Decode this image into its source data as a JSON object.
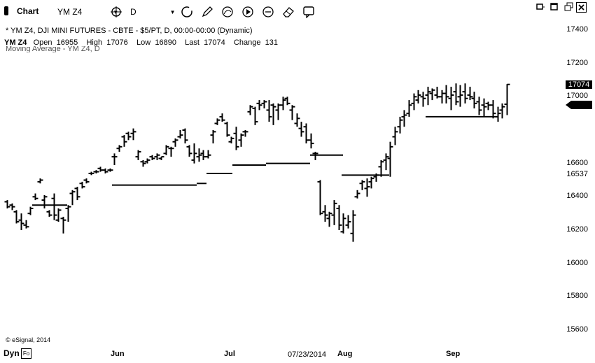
{
  "toolbar": {
    "title": "Chart",
    "symbol": "YM Z4",
    "interval": "D",
    "tool_icons": [
      "crosshair-icon",
      "loop-icon",
      "pencil-icon",
      "arc-tool-icon",
      "play-icon",
      "zoom-icon",
      "eraser-icon",
      "comment-icon"
    ]
  },
  "window": {
    "icons": [
      "restore-icon",
      "maximize-icon",
      "close-icon"
    ]
  },
  "info": {
    "line1": "* YM Z4, DJI MINI FUTURES - CBTE - $5/PT, D, 00:00-00:00 (Dynamic)",
    "symbol": "YM Z4",
    "open_label": "Open",
    "open": "16955",
    "high_label": "High",
    "high": "17076",
    "low_label": "Low",
    "low": "16890",
    "last_label": "Last",
    "last": "17074",
    "change_label": "Change",
    "change": "131",
    "study": "Moving Average - YM Z4, D"
  },
  "footer": {
    "copyright": "© eSignal, 2014",
    "dyn": "Dyn",
    "cursor_date": "07/23/2014"
  },
  "colors": {
    "bars": "#000000",
    "background": "#ffffff"
  },
  "chart_data": {
    "type": "bar",
    "style": "OHLC",
    "yticks": [
      "17400",
      "17200",
      "17000",
      "16600",
      "16400",
      "16200",
      "16000",
      "15800",
      "15600"
    ],
    "yvalues": [
      17400,
      17200,
      17000,
      16600,
      16400,
      16200,
      16000,
      15800,
      15600
    ],
    "ylim": [
      15500,
      17500
    ],
    "price_tag_last": "17074",
    "price_tag_extra": "16537",
    "xlabels": [
      "Jun",
      "Jul",
      "Aug",
      "Sep"
    ],
    "ohlc": [
      [
        16370,
        16380,
        16330,
        16340
      ],
      [
        16350,
        16360,
        16320,
        16340
      ],
      [
        16310,
        16320,
        16240,
        16250
      ],
      [
        16260,
        16300,
        16200,
        16240
      ],
      [
        16230,
        16260,
        16210,
        16220
      ],
      [
        16300,
        16340,
        16290,
        16330
      ],
      [
        16400,
        16420,
        16380,
        16390
      ],
      [
        16490,
        16510,
        16480,
        16500
      ],
      [
        16380,
        16410,
        16330,
        16400
      ],
      [
        16310,
        16320,
        16280,
        16290
      ],
      [
        16390,
        16420,
        16260,
        16290
      ],
      [
        16260,
        16330,
        16250,
        16320
      ],
      [
        16270,
        16280,
        16180,
        16260
      ],
      [
        16330,
        16350,
        16250,
        16340
      ],
      [
        16420,
        16440,
        16350,
        16430
      ],
      [
        16450,
        16460,
        16380,
        16400
      ],
      [
        16480,
        16490,
        16450,
        16460
      ],
      [
        16500,
        16510,
        16480,
        16490
      ],
      [
        16540,
        16550,
        16530,
        16540
      ],
      [
        16550,
        16560,
        16540,
        16550
      ],
      [
        16570,
        16580,
        16550,
        16560
      ],
      [
        16560,
        16570,
        16540,
        16550
      ],
      [
        16560,
        16570,
        16550,
        16560
      ],
      [
        16640,
        16660,
        16590,
        16640
      ],
      [
        16690,
        16710,
        16670,
        16700
      ],
      [
        16760,
        16770,
        16700,
        16730
      ],
      [
        16780,
        16790,
        16740,
        16760
      ],
      [
        16780,
        16810,
        16740,
        16790
      ],
      [
        16640,
        16680,
        16620,
        16670
      ],
      [
        16610,
        16620,
        16580,
        16600
      ],
      [
        16610,
        16630,
        16600,
        16620
      ],
      [
        16640,
        16650,
        16620,
        16630
      ],
      [
        16640,
        16660,
        16620,
        16650
      ],
      [
        16630,
        16640,
        16620,
        16640
      ],
      [
        16660,
        16710,
        16650,
        16700
      ],
      [
        16690,
        16700,
        16640,
        16690
      ],
      [
        16730,
        16750,
        16700,
        16740
      ],
      [
        16760,
        16800,
        16750,
        16770
      ],
      [
        16800,
        16810,
        16720,
        16740
      ],
      [
        16700,
        16710,
        16640,
        16660
      ],
      [
        16620,
        16720,
        16600,
        16660
      ],
      [
        16640,
        16690,
        16610,
        16650
      ],
      [
        16660,
        16680,
        16620,
        16640
      ],
      [
        16640,
        16680,
        16630,
        16650
      ],
      [
        16770,
        16800,
        16720,
        16790
      ],
      [
        16840,
        16870,
        16830,
        16860
      ],
      [
        16880,
        16900,
        16850,
        16860
      ],
      [
        16840,
        16850,
        16760,
        16770
      ],
      [
        16730,
        16760,
        16720,
        16750
      ],
      [
        16780,
        16820,
        16680,
        16700
      ],
      [
        16740,
        16780,
        16700,
        16770
      ],
      [
        16790,
        16800,
        16760,
        16790
      ],
      [
        16910,
        16950,
        16890,
        16940
      ],
      [
        16930,
        16940,
        16830,
        16850
      ],
      [
        16960,
        16980,
        16920,
        16950
      ],
      [
        16960,
        16980,
        16930,
        16970
      ],
      [
        16920,
        16980,
        16850,
        16880
      ],
      [
        16950,
        16960,
        16830,
        16940
      ],
      [
        16920,
        16960,
        16860,
        16950
      ],
      [
        16950,
        17000,
        16920,
        16980
      ],
      [
        16990,
        17000,
        16950,
        16960
      ],
      [
        16920,
        16950,
        16860,
        16940
      ],
      [
        16840,
        16900,
        16820,
        16870
      ],
      [
        16810,
        16850,
        16760,
        16790
      ],
      [
        16820,
        16840,
        16720,
        16740
      ],
      [
        16740,
        16780,
        16690,
        16720
      ],
      [
        16660,
        16670,
        16620,
        16660
      ],
      [
        16490,
        16500,
        16290,
        16300
      ],
      [
        16310,
        16350,
        16250,
        16290
      ],
      [
        16270,
        16310,
        16220,
        16300
      ],
      [
        16290,
        16380,
        16230,
        16360
      ],
      [
        16330,
        16350,
        16200,
        16230
      ],
      [
        16190,
        16300,
        16180,
        16270
      ],
      [
        16230,
        16290,
        16210,
        16250
      ],
      [
        16180,
        16320,
        16130,
        16290
      ],
      [
        16400,
        16440,
        16390,
        16420
      ],
      [
        16480,
        16500,
        16440,
        16490
      ],
      [
        16450,
        16510,
        16400,
        16460
      ],
      [
        16490,
        16520,
        16450,
        16510
      ],
      [
        16520,
        16540,
        16490,
        16530
      ],
      [
        16580,
        16620,
        16520,
        16610
      ],
      [
        16620,
        16660,
        16560,
        16640
      ],
      [
        16630,
        16730,
        16520,
        16700
      ],
      [
        16760,
        16820,
        16710,
        16790
      ],
      [
        16820,
        16880,
        16780,
        16860
      ],
      [
        16880,
        16920,
        16820,
        16890
      ],
      [
        16900,
        16980,
        16880,
        16950
      ],
      [
        16960,
        17020,
        16920,
        17000
      ],
      [
        16980,
        17040,
        16960,
        17010
      ],
      [
        17000,
        17030,
        16940,
        16990
      ],
      [
        17010,
        17060,
        16950,
        17030
      ],
      [
        17020,
        17050,
        16980,
        17040
      ],
      [
        17010,
        17060,
        16990,
        17000
      ],
      [
        17000,
        17040,
        16960,
        17020
      ],
      [
        17020,
        17070,
        16960,
        17000
      ],
      [
        16990,
        17060,
        16920,
        17010
      ],
      [
        17030,
        17080,
        16950,
        16970
      ],
      [
        17000,
        17070,
        16940,
        17010
      ],
      [
        17030,
        17080,
        16960,
        16990
      ],
      [
        17010,
        17060,
        16980,
        17000
      ],
      [
        16990,
        17030,
        16930,
        16960
      ],
      [
        16970,
        17000,
        16890,
        16920
      ],
      [
        16950,
        16990,
        16880,
        16940
      ],
      [
        16960,
        16970,
        16920,
        16950
      ],
      [
        16950,
        16980,
        16870,
        16900
      ],
      [
        16880,
        16940,
        16850,
        16900
      ],
      [
        16920,
        16960,
        16870,
        16940
      ],
      [
        16955,
        17076,
        16890,
        17074
      ]
    ],
    "moving_average": [
      {
        "from": 46,
        "to": 96,
        "value": 16350
      },
      {
        "from": 160,
        "to": 281,
        "value": 16470
      },
      {
        "from": 281,
        "to": 295,
        "value": 16480
      },
      {
        "from": 295,
        "to": 332,
        "value": 16540
      },
      {
        "from": 332,
        "to": 380,
        "value": 16590
      },
      {
        "from": 380,
        "to": 443,
        "value": 16600
      },
      {
        "from": 443,
        "to": 490,
        "value": 16650
      },
      {
        "from": 488,
        "to": 556,
        "value": 16530
      },
      {
        "from": 608,
        "to": 712,
        "value": 16880
      }
    ]
  }
}
